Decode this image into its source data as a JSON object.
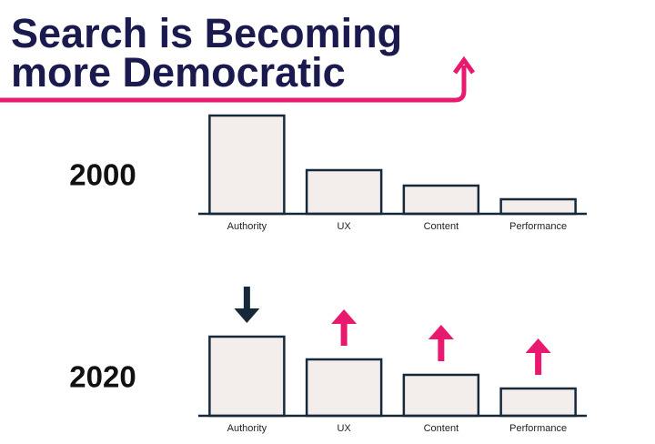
{
  "slide_title": [
    "Search is Becoming",
    "more Democratic"
  ],
  "chart_data": [
    {
      "type": "bar",
      "title": "2000",
      "categories": [
        "Authority",
        "UX",
        "Content",
        "Performance"
      ],
      "values": [
        108,
        48,
        31,
        16
      ],
      "color": "#f3eeec",
      "edge_color": "#16293b",
      "ylim": [
        0,
        110
      ]
    },
    {
      "type": "bar",
      "title": "2020",
      "categories": [
        "Authority",
        "UX",
        "Content",
        "Performance"
      ],
      "values": [
        87,
        62,
        45,
        30
      ],
      "color": "#f3eeec",
      "edge_color": "#16293b",
      "ylim": [
        0,
        110
      ],
      "up_color": "#e8196f",
      "down_color": "#16293b"
    }
  ]
}
